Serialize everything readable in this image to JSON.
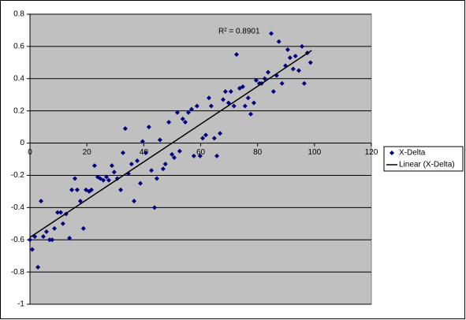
{
  "chart_data": {
    "type": "scatter",
    "series": [
      {
        "name": "X-Delta",
        "color": "#000080",
        "x": [
          0,
          0.8,
          1.7,
          2.8,
          3.9,
          4.7,
          5.8,
          6.9,
          7.8,
          8.6,
          9.7,
          10.8,
          11.6,
          12.7,
          13.9,
          14.7,
          15.8,
          16.6,
          17.7,
          18.8,
          19.7,
          20.8,
          21.6,
          22.7,
          23.8,
          24.7,
          25.8,
          26.9,
          27.7,
          28.8,
          29.6,
          30.7,
          31.9,
          32.7,
          33.5,
          34.6,
          35.7,
          36.6,
          37.7,
          38.8,
          39.6,
          40.7,
          41.8,
          42.7,
          43.8,
          44.6,
          45.7,
          46.8,
          47.6,
          48.8,
          49.9,
          50.7,
          51.8,
          52.6,
          53.7,
          54.6,
          55.7,
          56.8,
          57.6,
          58.7,
          59.8,
          60.7,
          61.8,
          62.9,
          63.7,
          64.8,
          65.7,
          66.8,
          67.9,
          68.7,
          69.8,
          70.6,
          71.7,
          72.6,
          73.7,
          74.8,
          75.6,
          76.7,
          77.6,
          78.7,
          79.5,
          80.6,
          81.4,
          82.5,
          83.7,
          84.8,
          85.6,
          86.7,
          87.5,
          88.6,
          89.8,
          90.6,
          91.4,
          92.5,
          93.3,
          94.5,
          95.6,
          96.4,
          97.5,
          98.6
        ],
        "values": [
          -0.6,
          -0.66,
          -0.58,
          -0.77,
          -0.36,
          -0.58,
          -0.55,
          -0.6,
          -0.6,
          -0.53,
          -0.43,
          -0.43,
          -0.5,
          -0.44,
          -0.59,
          -0.29,
          -0.22,
          -0.29,
          -0.36,
          -0.53,
          -0.29,
          -0.3,
          -0.29,
          -0.14,
          -0.21,
          -0.22,
          -0.23,
          -0.21,
          -0.23,
          -0.14,
          -0.18,
          -0.22,
          -0.29,
          -0.06,
          0.09,
          -0.19,
          -0.13,
          -0.36,
          -0.11,
          -0.25,
          0.01,
          -0.06,
          0.1,
          -0.17,
          -0.4,
          -0.22,
          0.02,
          -0.16,
          -0.13,
          0.13,
          -0.07,
          -0.09,
          0.19,
          -0.05,
          0.15,
          0.13,
          0.19,
          0.21,
          -0.08,
          0.23,
          -0.08,
          0.03,
          0.05,
          0.28,
          0.23,
          0.03,
          -0.08,
          0.06,
          0.27,
          0.32,
          0.25,
          0.32,
          0.23,
          0.55,
          0.34,
          0.35,
          0.23,
          0.28,
          0.18,
          0.25,
          0.39,
          0.37,
          0.37,
          0.4,
          0.44,
          0.68,
          0.32,
          0.42,
          0.63,
          0.37,
          0.48,
          0.58,
          0.53,
          0.46,
          0.54,
          0.45,
          0.6,
          0.37,
          0.56,
          0.5
        ]
      },
      {
        "name": "Linear (X-Delta)",
        "color": "#000000",
        "x": [
          0,
          99
        ],
        "values": [
          -0.585,
          0.575
        ]
      }
    ],
    "annotation": "R² = 0.8901",
    "xlim": [
      0,
      120
    ],
    "xticks": [
      0,
      20,
      40,
      60,
      80,
      100,
      120
    ],
    "ylim": [
      -1,
      0.8
    ],
    "yticks": [
      -1,
      -0.8,
      -0.6,
      -0.4,
      -0.2,
      0,
      0.2,
      0.4,
      0.6,
      0.8
    ],
    "grid": true,
    "legend": "right",
    "background": "#c0c0c0"
  }
}
